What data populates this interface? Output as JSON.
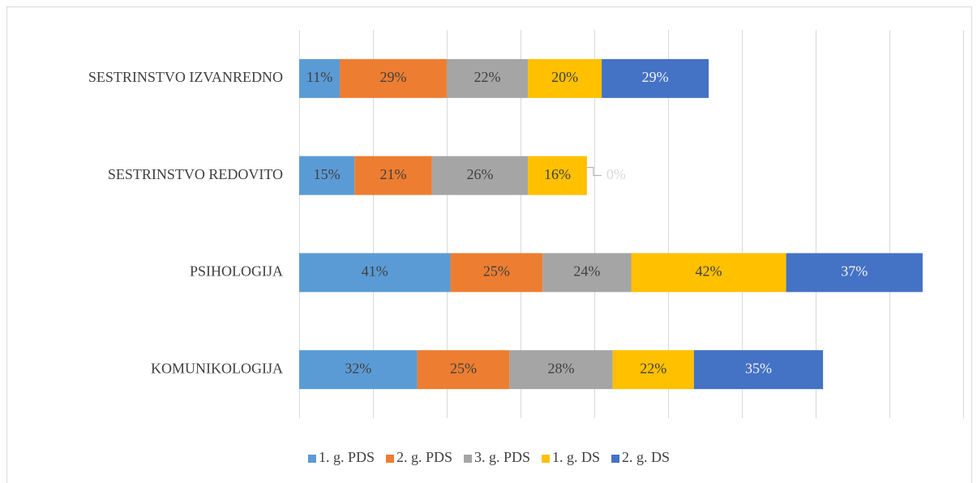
{
  "chart_data": {
    "type": "stacked_barh",
    "categories": [
      "SESTRINSTVO IZVANREDNO",
      "SESTRINSTVO REDOVITO",
      "PSIHOLOGIJA",
      "KOMUNIKOLOGIJA"
    ],
    "series": [
      {
        "name": "1. g. PDS",
        "color": "#5b9bd5",
        "values": [
          11,
          15,
          41,
          32
        ],
        "value_labels": [
          "11%",
          "15%",
          "41%",
          "32%"
        ]
      },
      {
        "name": "2. g. PDS",
        "color": "#ed7d31",
        "values": [
          29,
          21,
          25,
          25
        ],
        "value_labels": [
          "29%",
          "21%",
          "25%",
          "25%"
        ]
      },
      {
        "name": "3. g. PDS",
        "color": "#a5a5a5",
        "values": [
          22,
          26,
          24,
          28
        ],
        "value_labels": [
          "22%",
          "26%",
          "24%",
          "28%"
        ]
      },
      {
        "name": "1. g. DS",
        "color": "#ffc000",
        "values": [
          20,
          16,
          42,
          22
        ],
        "value_labels": [
          "20%",
          "16%",
          "42%",
          "22%"
        ]
      },
      {
        "name": "2. g. DS",
        "color": "#4472c4",
        "values": [
          29,
          0,
          37,
          35
        ],
        "value_labels": [
          "29%",
          "0%",
          "37%",
          "35%"
        ]
      }
    ],
    "xlim": [
      0,
      180
    ],
    "xticks": [
      0,
      20,
      40,
      60,
      80,
      100,
      120,
      140,
      160,
      180
    ],
    "grid": true,
    "legend": "bottom"
  }
}
